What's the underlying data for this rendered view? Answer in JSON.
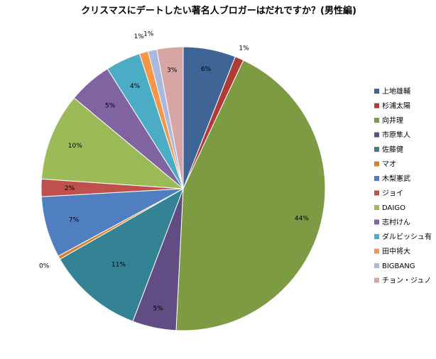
{
  "chart_data": {
    "type": "pie",
    "title": "クリスマスにデートしたい著名人ブロガーはだれですか？(男性編)",
    "legend_position": "right",
    "slices": [
      {
        "name": "上地雄輔",
        "value": 6,
        "label": "6%",
        "color": "#3f6597"
      },
      {
        "name": "杉浦太陽",
        "value": 1,
        "label": "1%",
        "color": "#b03a36"
      },
      {
        "name": "向井理",
        "value": 44,
        "label": "44%",
        "color": "#7c9b43"
      },
      {
        "name": "市原隼人",
        "value": 5,
        "label": "5%",
        "color": "#614c84"
      },
      {
        "name": "佐藤健",
        "value": 11,
        "label": "11%",
        "color": "#338395"
      },
      {
        "name": "マオ",
        "value": 0.4,
        "label": "0%",
        "color": "#db7f2c"
      },
      {
        "name": "木梨憲武",
        "value": 7,
        "label": "7%",
        "color": "#4f7fc0"
      },
      {
        "name": "ジョイ",
        "value": 2,
        "label": "2%",
        "color": "#c0504d"
      },
      {
        "name": "DAIGO",
        "value": 10,
        "label": "10%",
        "color": "#9bbb59"
      },
      {
        "name": "志村けん",
        "value": 5,
        "label": "5%",
        "color": "#8064a2"
      },
      {
        "name": "ダルビッシュ有",
        "value": 4,
        "label": "4%",
        "color": "#4bacc6"
      },
      {
        "name": "田中将大",
        "value": 1,
        "label": "1%",
        "color": "#f79646"
      },
      {
        "name": "BIGBANG",
        "value": 1,
        "label": "1%",
        "color": "#a9b8dc"
      },
      {
        "name": "チョン・ジュノ",
        "value": 3,
        "label": "3%",
        "color": "#d6a5a4"
      }
    ]
  }
}
